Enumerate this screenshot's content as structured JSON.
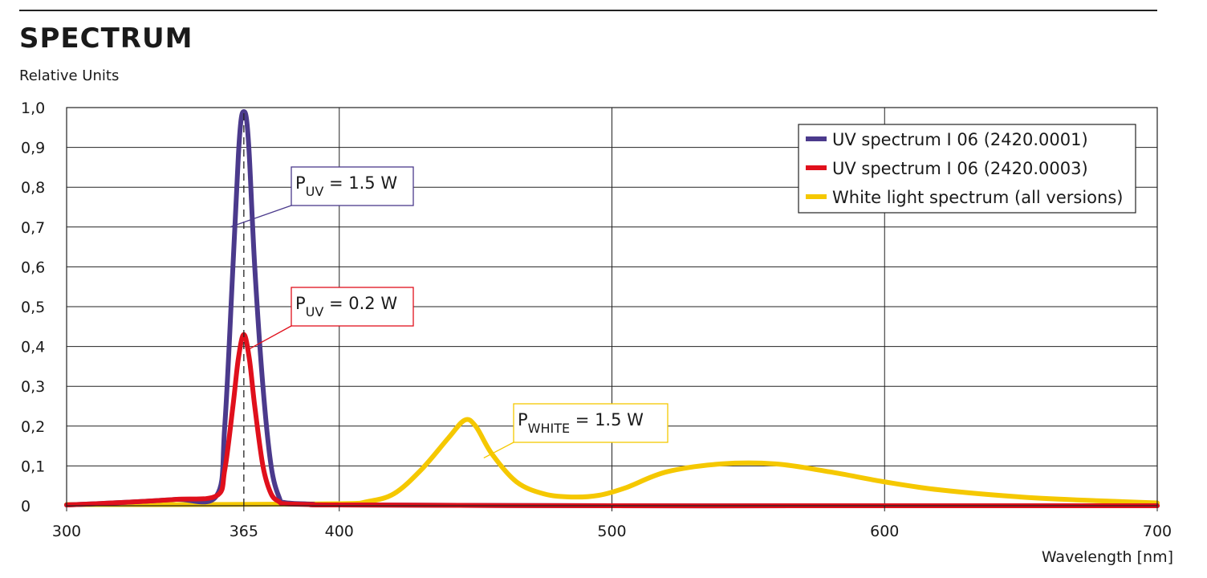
{
  "title": "SPECTRUM",
  "y_unit_label": "Relative Units",
  "chart_data": {
    "type": "line",
    "title": "SPECTRUM",
    "ylabel": "Relative Units",
    "xlabel": "Wavelength [nm]",
    "xlim": [
      300,
      700
    ],
    "ylim": [
      0,
      1.0
    ],
    "x_ticks": [
      300,
      365,
      400,
      500,
      600,
      700
    ],
    "x_tick_labels": [
      "300",
      "365",
      "400",
      "500",
      "600",
      "700"
    ],
    "x_gridlines": [
      400,
      500,
      600
    ],
    "y_ticks": [
      0,
      0.1,
      0.2,
      0.3,
      0.4,
      0.5,
      0.6,
      0.7,
      0.8,
      0.9,
      1.0
    ],
    "y_tick_labels": [
      "0",
      "0,1",
      "0,2",
      "0,3",
      "0,4",
      "0,5",
      "0,6",
      "0,7",
      "0,8",
      "0,9",
      "1,0"
    ],
    "grid": true,
    "legend_position": "top-right",
    "series": [
      {
        "name": "UV spectrum I 06 (2420.0001)",
        "color": "#4b3a8c",
        "x": [
          300,
          320,
          340,
          355,
          358,
          361,
          363,
          364,
          365,
          366,
          367,
          369,
          372,
          375,
          378,
          380,
          390,
          400,
          500,
          600,
          700
        ],
        "y": [
          0.002,
          0.008,
          0.016,
          0.025,
          0.2,
          0.6,
          0.88,
          0.97,
          0.99,
          0.97,
          0.88,
          0.6,
          0.3,
          0.1,
          0.02,
          0.008,
          0.004,
          0.002,
          0.0,
          0.0,
          0.0
        ]
      },
      {
        "name": "UV spectrum I 06 (2420.0003)",
        "color": "#e0101c",
        "x": [
          300,
          320,
          340,
          355,
          358,
          361,
          363,
          365,
          367,
          369,
          372,
          375,
          378,
          380,
          390,
          400,
          500,
          600,
          700
        ],
        "y": [
          0.002,
          0.008,
          0.016,
          0.025,
          0.09,
          0.25,
          0.37,
          0.43,
          0.37,
          0.25,
          0.1,
          0.03,
          0.01,
          0.005,
          0.003,
          0.002,
          0.0,
          0.0,
          0.0
        ]
      },
      {
        "name": "White light spectrum (all versions)",
        "color": "#f5c800",
        "x": [
          300,
          350,
          400,
          410,
          420,
          430,
          440,
          446,
          450,
          456,
          465,
          475,
          485,
          495,
          505,
          520,
          540,
          560,
          580,
          600,
          620,
          650,
          680,
          700
        ],
        "y": [
          0.003,
          0.003,
          0.005,
          0.01,
          0.03,
          0.09,
          0.17,
          0.215,
          0.2,
          0.13,
          0.06,
          0.03,
          0.022,
          0.026,
          0.045,
          0.085,
          0.105,
          0.105,
          0.085,
          0.06,
          0.04,
          0.022,
          0.012,
          0.007
        ]
      }
    ],
    "annotations": [
      {
        "main": "P",
        "sub": "UV",
        "value": " = 1.5 W",
        "color": "#4b3a8c",
        "target_x": 360,
        "target_y": 0.7
      },
      {
        "main": "P",
        "sub": "UV",
        "value": " = 0.2 W",
        "color": "#e0101c",
        "target_x": 366,
        "target_y": 0.39
      },
      {
        "main": "P",
        "sub": "WHITE",
        "value": " = 1.5 W",
        "color": "#f5c800",
        "target_x": 453,
        "target_y": 0.12
      }
    ],
    "reference_line": {
      "x": 365,
      "from_y": 0,
      "to_y": 0.99,
      "style": "dashed"
    }
  }
}
